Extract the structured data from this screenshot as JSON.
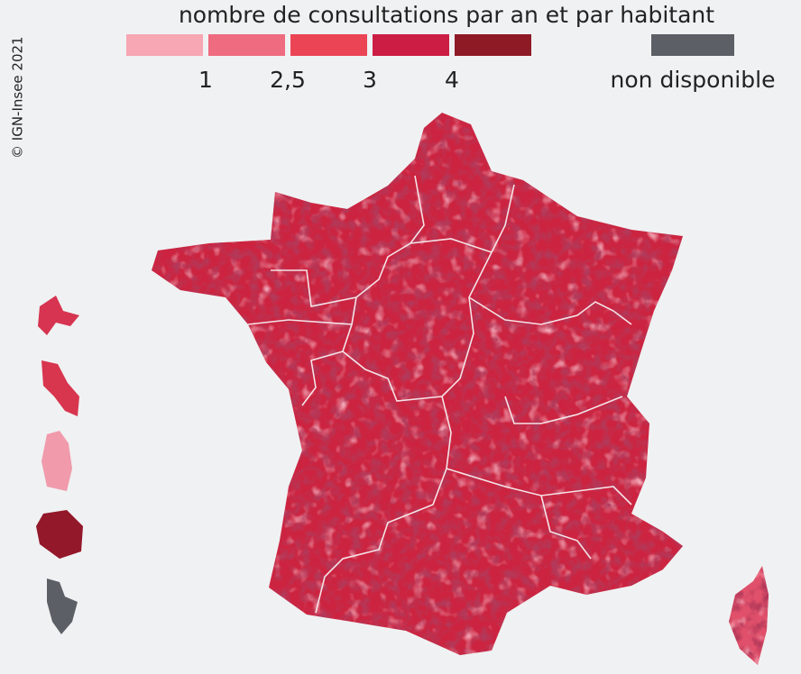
{
  "credit": "© IGN-Insee 2021",
  "legend": {
    "title": "nombre de consultations par an et par habitant",
    "colors": [
      "#f7a6b3",
      "#ee6b80",
      "#ea4455",
      "#cc1e45",
      "#8e1a26"
    ],
    "ticks": [
      "1",
      "2,5",
      "3",
      "4"
    ],
    "na_label": "non disponible",
    "na_color": "#5c6066"
  }
}
